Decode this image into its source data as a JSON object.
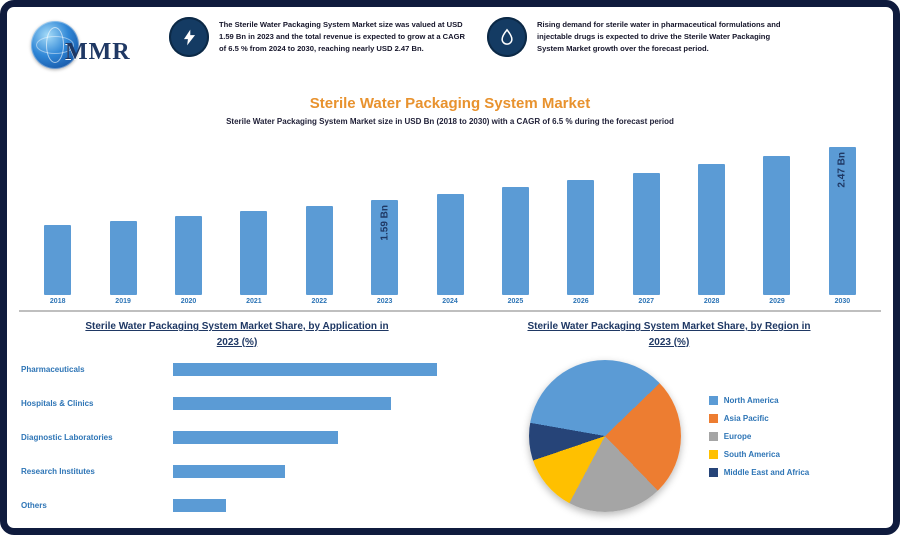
{
  "logo": {
    "text": "MMR"
  },
  "header": {
    "block1": {
      "icon": "lightning",
      "text": "The Sterile Water Packaging System Market size was valued at USD 1.59 Bn in 2023 and the total revenue is expected to grow at a CAGR of 6.5 % from 2024 to 2030, reaching nearly USD 2.47 Bn."
    },
    "block2": {
      "icon": "water-drop",
      "text": "Rising demand for sterile water in pharmaceutical formulations and injectable drugs is expected to drive the Sterile Water Packaging System Market growth over the forecast period."
    }
  },
  "title": "Sterile Water Packaging System Market",
  "subtitle": "Sterile Water Packaging System Market size in USD Bn (2018 to 2030) with a CAGR of 6.5 % during the forecast period",
  "chart_data": [
    {
      "type": "bar",
      "name": "market-size-by-year",
      "title": "Sterile Water Packaging System Market",
      "ylabel": "USD Bn",
      "categories": [
        "2018",
        "2019",
        "2020",
        "2021",
        "2022",
        "2023",
        "2024",
        "2025",
        "2026",
        "2027",
        "2028",
        "2029",
        "2030"
      ],
      "values": [
        1.16,
        1.24,
        1.32,
        1.4,
        1.49,
        1.59,
        1.69,
        1.8,
        1.92,
        2.04,
        2.18,
        2.32,
        2.47
      ],
      "point_labels": {
        "2023": "1.59 Bn",
        "2030": "2.47 Bn"
      },
      "bar_color": "#5b9bd5",
      "ylim": [
        0,
        2.6
      ],
      "grid": false
    },
    {
      "type": "bar",
      "orientation": "horizontal",
      "name": "market-share-by-application",
      "heading_line1": "Sterile Water Packaging System Market Share, by Application in",
      "heading_line2": "2023 (%)",
      "categories": [
        "Pharmaceuticals",
        "Hospitals & Clinics",
        "Diagnostic Laboratories",
        "Research Institutes",
        "Others"
      ],
      "values": [
        40,
        33,
        25,
        17,
        8
      ],
      "bar_color": "#5b9bd5",
      "unit": "%"
    },
    {
      "type": "pie",
      "name": "market-share-by-region",
      "heading_line1": "Sterile Water Packaging System Market Share, by Region in",
      "heading_line2": "2023 (%)",
      "start_angle_deg": 280,
      "legend_position": "right",
      "slices": [
        {
          "label": "North America",
          "value": 35,
          "color": "#5b9bd5"
        },
        {
          "label": "Asia Pacific",
          "value": 25,
          "color": "#ed7d31"
        },
        {
          "label": "Europe",
          "value": 20,
          "color": "#a5a5a5"
        },
        {
          "label": "South America",
          "value": 12,
          "color": "#ffc000"
        },
        {
          "label": "Middle East and Africa",
          "value": 8,
          "color": "#264478"
        }
      ]
    }
  ]
}
